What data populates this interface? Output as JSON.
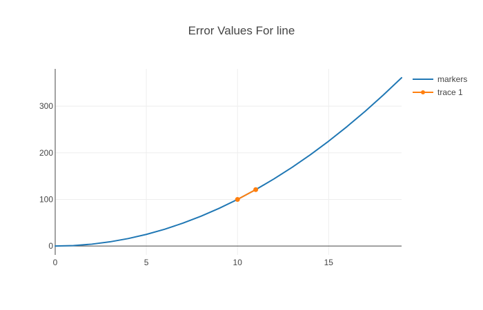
{
  "chart_data": {
    "type": "line",
    "title": "Error Values For line",
    "xlabel": "",
    "ylabel": "",
    "xlim": [
      0,
      19
    ],
    "ylim": [
      -19,
      380
    ],
    "x_ticks": [
      0,
      5,
      10,
      15
    ],
    "y_ticks": [
      0,
      100,
      200,
      300
    ],
    "grid": true,
    "legend_position": "top-right",
    "series": [
      {
        "name": "markers",
        "color": "#1f77b4",
        "mode": "lines",
        "x": [
          0,
          1,
          2,
          3,
          4,
          5,
          6,
          7,
          8,
          9,
          10,
          11,
          12,
          13,
          14,
          15,
          16,
          17,
          18,
          19
        ],
        "y": [
          0,
          1,
          4,
          9,
          16,
          25,
          36,
          49,
          64,
          81,
          100,
          121,
          144,
          169,
          196,
          225,
          256,
          289,
          324,
          361
        ]
      },
      {
        "name": "trace 1",
        "color": "#ff7f0e",
        "mode": "lines+markers",
        "x": [
          10,
          11
        ],
        "y": [
          100,
          121
        ]
      }
    ]
  }
}
